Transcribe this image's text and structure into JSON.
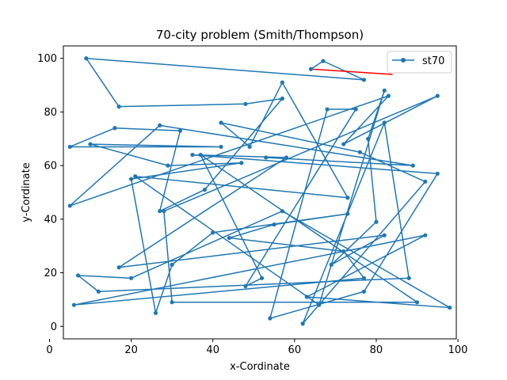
{
  "chart_data": {
    "type": "line",
    "title": "70-city problem (Smith/Thompson)",
    "xlabel": "x-Cordinate",
    "ylabel": "y-Cordinate",
    "xlim": [
      3.4,
      99.6
    ],
    "ylim": [
      -4.65,
      104.65
    ],
    "xticks": [
      0,
      20,
      40,
      60,
      80,
      100
    ],
    "yticks": [
      0,
      20,
      40,
      60,
      80,
      100
    ],
    "legend_position": "top-right",
    "grid": false,
    "series": [
      {
        "name": "st70",
        "color": "#1f77b4",
        "marker": "circle",
        "points": [
          [
            64,
            96
          ],
          [
            67,
            99
          ],
          [
            77,
            92
          ],
          [
            9,
            100
          ],
          [
            17,
            82
          ],
          [
            48,
            83
          ],
          [
            57,
            85
          ],
          [
            38,
            51
          ],
          [
            27,
            43
          ],
          [
            32,
            73
          ],
          [
            16,
            74
          ],
          [
            5,
            67
          ],
          [
            42,
            67
          ],
          [
            10,
            68
          ],
          [
            29,
            60
          ],
          [
            47,
            61
          ],
          [
            20,
            55
          ],
          [
            26,
            5
          ],
          [
            30,
            23
          ],
          [
            40,
            35
          ],
          [
            73,
            42
          ],
          [
            55,
            38
          ],
          [
            44,
            33
          ],
          [
            72,
            28
          ],
          [
            77,
            18
          ],
          [
            6,
            8
          ],
          [
            92,
            34
          ],
          [
            63,
            11
          ],
          [
            98,
            7
          ],
          [
            57,
            43
          ],
          [
            20,
            18
          ],
          [
            7,
            19
          ],
          [
            12,
            13
          ],
          [
            88,
            18
          ],
          [
            82,
            76
          ],
          [
            62,
            1
          ],
          [
            92,
            54
          ],
          [
            76,
            65
          ],
          [
            42,
            76
          ],
          [
            49,
            67
          ],
          [
            57,
            91
          ],
          [
            73,
            48
          ],
          [
            21,
            56
          ],
          [
            66,
            8
          ],
          [
            82,
            88
          ],
          [
            78,
            70
          ],
          [
            80,
            39
          ],
          [
            69,
            23
          ],
          [
            82,
            34
          ],
          [
            17,
            22
          ],
          [
            58,
            63
          ],
          [
            35,
            64
          ],
          [
            95,
            57
          ],
          [
            77,
            13
          ],
          [
            54,
            3
          ],
          [
            68,
            81
          ],
          [
            75,
            81
          ],
          [
            48,
            15
          ],
          [
            52,
            18
          ],
          [
            37,
            64
          ],
          [
            90,
            9
          ],
          [
            30,
            9
          ],
          [
            28,
            43
          ],
          [
            95,
            86
          ],
          [
            72,
            68
          ],
          [
            83,
            86
          ],
          [
            5,
            45
          ],
          [
            27,
            75
          ],
          [
            89,
            60
          ],
          [
            53,
            63
          ]
        ]
      }
    ],
    "highlight_segment": {
      "color": "#ff0000",
      "from": [
        64,
        96
      ],
      "to": [
        84,
        94
      ]
    }
  }
}
